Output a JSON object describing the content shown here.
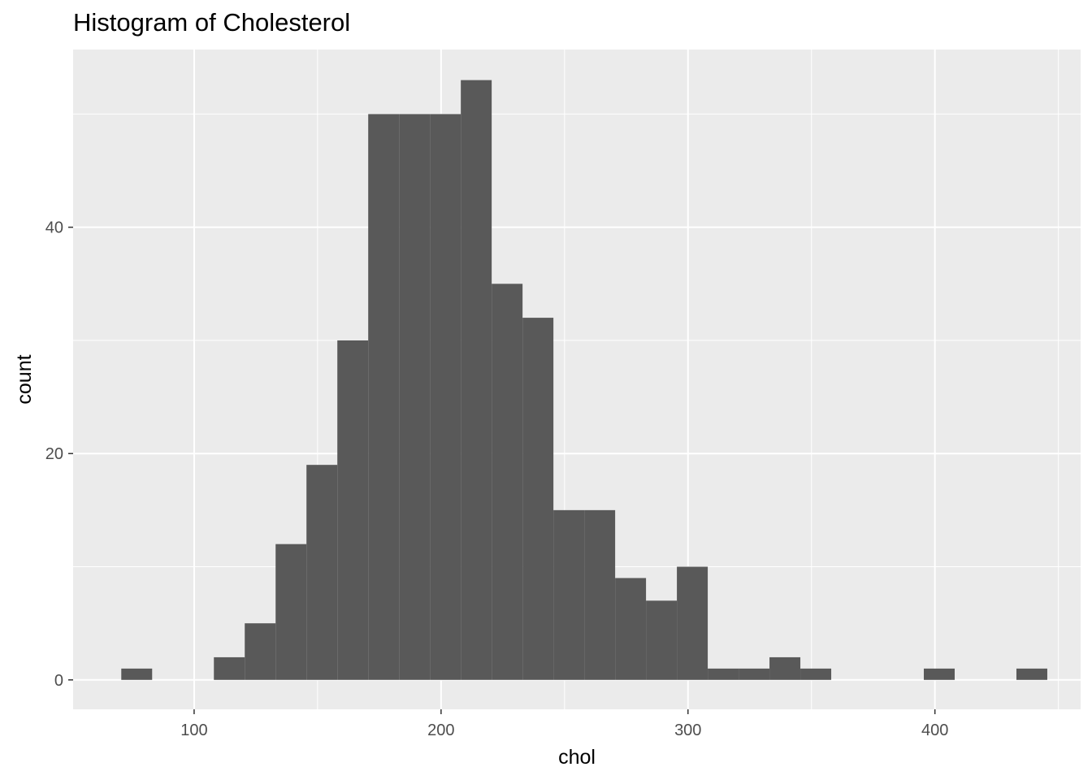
{
  "chart_data": {
    "type": "bar",
    "title": "Histogram of Cholesterol",
    "xlabel": "chol",
    "ylabel": "count",
    "xlim": [
      51,
      459
    ],
    "ylim": [
      -2.6,
      55.7
    ],
    "x_ticks": [
      100,
      200,
      300,
      400
    ],
    "y_ticks": [
      0,
      20,
      40
    ],
    "grid": true,
    "bar_color": "#595959",
    "panel_color": "#ebebeb",
    "bins": [
      {
        "x0": 70.5,
        "x1": 83.0,
        "count": 1
      },
      {
        "x0": 83.0,
        "x1": 95.5,
        "count": 0
      },
      {
        "x0": 95.5,
        "x1": 108.0,
        "count": 0
      },
      {
        "x0": 108.0,
        "x1": 120.5,
        "count": 2
      },
      {
        "x0": 120.5,
        "x1": 133.0,
        "count": 5
      },
      {
        "x0": 133.0,
        "x1": 145.5,
        "count": 12
      },
      {
        "x0": 145.5,
        "x1": 158.0,
        "count": 19
      },
      {
        "x0": 158.0,
        "x1": 170.5,
        "count": 30
      },
      {
        "x0": 170.5,
        "x1": 183.0,
        "count": 50
      },
      {
        "x0": 183.0,
        "x1": 195.5,
        "count": 50
      },
      {
        "x0": 195.5,
        "x1": 208.0,
        "count": 50
      },
      {
        "x0": 208.0,
        "x1": 220.5,
        "count": 53
      },
      {
        "x0": 220.5,
        "x1": 233.0,
        "count": 35
      },
      {
        "x0": 233.0,
        "x1": 245.5,
        "count": 32
      },
      {
        "x0": 245.5,
        "x1": 258.0,
        "count": 15
      },
      {
        "x0": 258.0,
        "x1": 270.5,
        "count": 15
      },
      {
        "x0": 270.5,
        "x1": 283.0,
        "count": 9
      },
      {
        "x0": 283.0,
        "x1": 295.5,
        "count": 7
      },
      {
        "x0": 295.5,
        "x1": 308.0,
        "count": 10
      },
      {
        "x0": 308.0,
        "x1": 320.5,
        "count": 1
      },
      {
        "x0": 320.5,
        "x1": 333.0,
        "count": 1
      },
      {
        "x0": 333.0,
        "x1": 345.5,
        "count": 2
      },
      {
        "x0": 345.5,
        "x1": 358.0,
        "count": 1
      },
      {
        "x0": 358.0,
        "x1": 370.5,
        "count": 0
      },
      {
        "x0": 370.5,
        "x1": 383.0,
        "count": 0
      },
      {
        "x0": 383.0,
        "x1": 395.5,
        "count": 0
      },
      {
        "x0": 395.5,
        "x1": 408.0,
        "count": 1
      },
      {
        "x0": 408.0,
        "x1": 420.5,
        "count": 0
      },
      {
        "x0": 420.5,
        "x1": 433.0,
        "count": 0
      },
      {
        "x0": 433.0,
        "x1": 445.5,
        "count": 1
      }
    ]
  }
}
